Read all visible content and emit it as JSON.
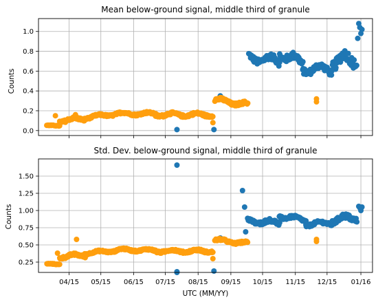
{
  "chart_data": [
    {
      "type": "scatter",
      "title": "Mean below-ground signal, middle third of granule",
      "ylabel": "Counts",
      "xlabel": "",
      "ylim": [
        -0.05,
        1.13
      ],
      "yticks": [
        0.0,
        0.2,
        0.4,
        0.6,
        0.8,
        1.0
      ],
      "ytick_labels": [
        "0.0",
        "0.2",
        "0.4",
        "0.6",
        "0.8",
        "1.0"
      ],
      "grid": true,
      "series": [
        {
          "color": "#1f77b4",
          "segments": [
            {
              "x0": "2020-10-02",
              "x1": "2020-10-31",
              "y0": 0.74,
              "y1": 0.7,
              "noise": 0.06
            },
            {
              "x0": "2020-10-31",
              "x1": "2020-11-22",
              "y0": 0.78,
              "y1": 0.68,
              "noise": 0.07
            },
            {
              "x0": "2020-11-22",
              "x1": "2020-12-20",
              "y0": 0.62,
              "y1": 0.62,
              "noise": 0.06
            },
            {
              "x0": "2020-12-20",
              "x1": "2021-01-12",
              "y0": 0.7,
              "y1": 0.72,
              "noise": 0.1
            }
          ],
          "points": [
            {
              "x": "2020-07-26",
              "y": 0.01
            },
            {
              "x": "2020-08-30",
              "y": 0.01
            },
            {
              "x": "2020-09-05",
              "y": 0.35
            },
            {
              "x": "2021-01-13",
              "y": 0.93
            },
            {
              "x": "2021-01-14",
              "y": 1.08
            },
            {
              "x": "2021-01-15",
              "y": 1.04
            },
            {
              "x": "2021-01-16",
              "y": 0.98
            },
            {
              "x": "2021-01-17",
              "y": 1.02
            }
          ]
        },
        {
          "color": "#ff9f0e",
          "segments": [
            {
              "x0": "2020-03-25",
              "x1": "2020-04-06",
              "y0": 0.05,
              "y1": 0.05,
              "noise": 0.005
            },
            {
              "x0": "2020-04-06",
              "x1": "2020-04-30",
              "y0": 0.1,
              "y1": 0.12,
              "noise": 0.025
            },
            {
              "x0": "2020-04-30",
              "x1": "2020-05-31",
              "y0": 0.13,
              "y1": 0.17,
              "noise": 0.02
            },
            {
              "x0": "2020-05-31",
              "x1": "2020-07-06",
              "y0": 0.17,
              "y1": 0.17,
              "noise": 0.02
            },
            {
              "x0": "2020-07-06",
              "x1": "2020-08-29",
              "y0": 0.16,
              "y1": 0.16,
              "noise": 0.025
            },
            {
              "x0": "2020-08-31",
              "x1": "2020-10-01",
              "y0": 0.31,
              "y1": 0.26,
              "noise": 0.03
            }
          ],
          "points": [
            {
              "x": "2020-04-02",
              "y": 0.15
            },
            {
              "x": "2020-04-21",
              "y": 0.16
            },
            {
              "x": "2020-08-29",
              "y": 0.08
            },
            {
              "x": "2020-12-05",
              "y": 0.32
            },
            {
              "x": "2020-12-05",
              "y": 0.29
            }
          ]
        }
      ]
    },
    {
      "type": "scatter",
      "title": "Std. Dev. below-ground signal, middle third of granule",
      "ylabel": "Counts",
      "xlabel": "UTC (MM/YY)",
      "ylim": [
        0.1,
        1.75
      ],
      "yticks": [
        0.25,
        0.5,
        0.75,
        1.0,
        1.25,
        1.5
      ],
      "ytick_labels": [
        "0.25",
        "0.50",
        "0.75",
        "1.00",
        "1.25",
        "1.50"
      ],
      "grid": true,
      "series": [
        {
          "color": "#1f77b4",
          "segments": [
            {
              "x0": "2020-10-01",
              "x1": "2020-10-31",
              "y0": 0.85,
              "y1": 0.82,
              "noise": 0.05
            },
            {
              "x0": "2020-10-31",
              "x1": "2020-11-25",
              "y0": 0.92,
              "y1": 0.86,
              "noise": 0.04
            },
            {
              "x0": "2020-11-25",
              "x1": "2020-12-20",
              "y0": 0.8,
              "y1": 0.82,
              "noise": 0.04
            },
            {
              "x0": "2020-12-20",
              "x1": "2021-01-12",
              "y0": 0.86,
              "y1": 0.9,
              "noise": 0.07
            }
          ],
          "points": [
            {
              "x": "2020-07-26",
              "y": 1.66
            },
            {
              "x": "2020-07-26",
              "y": 0.1
            },
            {
              "x": "2020-07-26",
              "y": 0.11
            },
            {
              "x": "2020-08-30",
              "y": 0.12
            },
            {
              "x": "2020-09-05",
              "y": 0.6
            },
            {
              "x": "2020-09-26",
              "y": 1.29
            },
            {
              "x": "2020-09-28",
              "y": 1.05
            },
            {
              "x": "2020-09-29",
              "y": 0.69
            },
            {
              "x": "2021-01-14",
              "y": 1.06
            },
            {
              "x": "2021-01-15",
              "y": 1.04
            },
            {
              "x": "2021-01-16",
              "y": 1.0
            },
            {
              "x": "2021-01-17",
              "y": 1.05
            }
          ]
        },
        {
          "color": "#ff9f0e",
          "segments": [
            {
              "x0": "2020-03-25",
              "x1": "2020-04-06",
              "y0": 0.22,
              "y1": 0.22,
              "noise": 0.01
            },
            {
              "x0": "2020-04-06",
              "x1": "2020-04-30",
              "y0": 0.33,
              "y1": 0.35,
              "noise": 0.035
            },
            {
              "x0": "2020-04-30",
              "x1": "2020-05-31",
              "y0": 0.38,
              "y1": 0.42,
              "noise": 0.025
            },
            {
              "x0": "2020-05-31",
              "x1": "2020-07-06",
              "y0": 0.43,
              "y1": 0.42,
              "noise": 0.025
            },
            {
              "x0": "2020-07-06",
              "x1": "2020-08-29",
              "y0": 0.41,
              "y1": 0.41,
              "noise": 0.03
            },
            {
              "x0": "2020-08-31",
              "x1": "2020-10-01",
              "y0": 0.57,
              "y1": 0.52,
              "noise": 0.03
            }
          ],
          "points": [
            {
              "x": "2020-04-04",
              "y": 0.38
            },
            {
              "x": "2020-04-22",
              "y": 0.58
            },
            {
              "x": "2020-08-29",
              "y": 0.3
            },
            {
              "x": "2020-12-05",
              "y": 0.58
            },
            {
              "x": "2020-12-05",
              "y": 0.55
            }
          ]
        }
      ]
    }
  ],
  "x_axis": {
    "range": [
      "2020-03-17",
      "2021-01-27"
    ],
    "ticks": [
      "2020-04-15",
      "2020-05-15",
      "2020-06-15",
      "2020-07-15",
      "2020-08-15",
      "2020-09-15",
      "2020-10-15",
      "2020-11-15",
      "2020-12-15",
      "2021-01-16"
    ],
    "tick_labels": [
      "04/15",
      "05/15",
      "06/15",
      "07/15",
      "08/15",
      "09/15",
      "10/15",
      "11/15",
      "12/15",
      "01/16"
    ]
  }
}
